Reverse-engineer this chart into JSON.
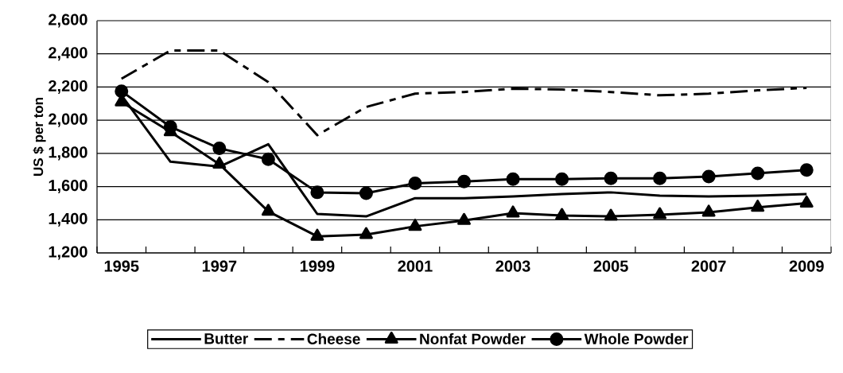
{
  "chart_data": {
    "type": "line",
    "ylabel": "US $ per ton",
    "categories": [
      "1995",
      null,
      "1997",
      null,
      "1999",
      null,
      "2001",
      null,
      "2003",
      null,
      "2005",
      null,
      "2007",
      null,
      "2009"
    ],
    "series": [
      {
        "name": "Butter",
        "color": "#000000",
        "line_style": "solid",
        "marker": "none",
        "values": [
          2150,
          1750,
          1720,
          1855,
          1435,
          1420,
          1530,
          1530,
          1540,
          1555,
          1565,
          1545,
          1540,
          1545,
          1555
        ]
      },
      {
        "name": "Cheese",
        "color": "#000000",
        "line_style": "dashed",
        "marker": "none",
        "values": [
          2250,
          2420,
          2420,
          2230,
          1910,
          2080,
          2160,
          2170,
          2190,
          2185,
          2170,
          2150,
          2160,
          2180,
          2195
        ]
      },
      {
        "name": "Nonfat Powder",
        "color": "#000000",
        "line_style": "solid",
        "marker": "triangle",
        "values": [
          2110,
          1930,
          1735,
          1450,
          1300,
          1310,
          1360,
          1395,
          1440,
          1425,
          1420,
          1430,
          1445,
          1475,
          1500
        ]
      },
      {
        "name": "Whole Powder",
        "color": "#000000",
        "line_style": "solid",
        "marker": "circle",
        "values": [
          2175,
          1960,
          1830,
          1765,
          1565,
          1560,
          1620,
          1630,
          1645,
          1645,
          1650,
          1650,
          1660,
          1680,
          1700
        ]
      }
    ],
    "ylim": [
      1200,
      2600
    ],
    "yticks": [
      {
        "value": 1200,
        "label": "1,200"
      },
      {
        "value": 1400,
        "label": "1,400"
      },
      {
        "value": 1600,
        "label": "1,600"
      },
      {
        "value": 1800,
        "label": "1,800"
      },
      {
        "value": 2000,
        "label": "2,000"
      },
      {
        "value": 2200,
        "label": "2,200"
      },
      {
        "value": 2400,
        "label": "2,400"
      },
      {
        "value": 2600,
        "label": "2,600"
      }
    ],
    "grid": "y",
    "legend": "bottom"
  }
}
